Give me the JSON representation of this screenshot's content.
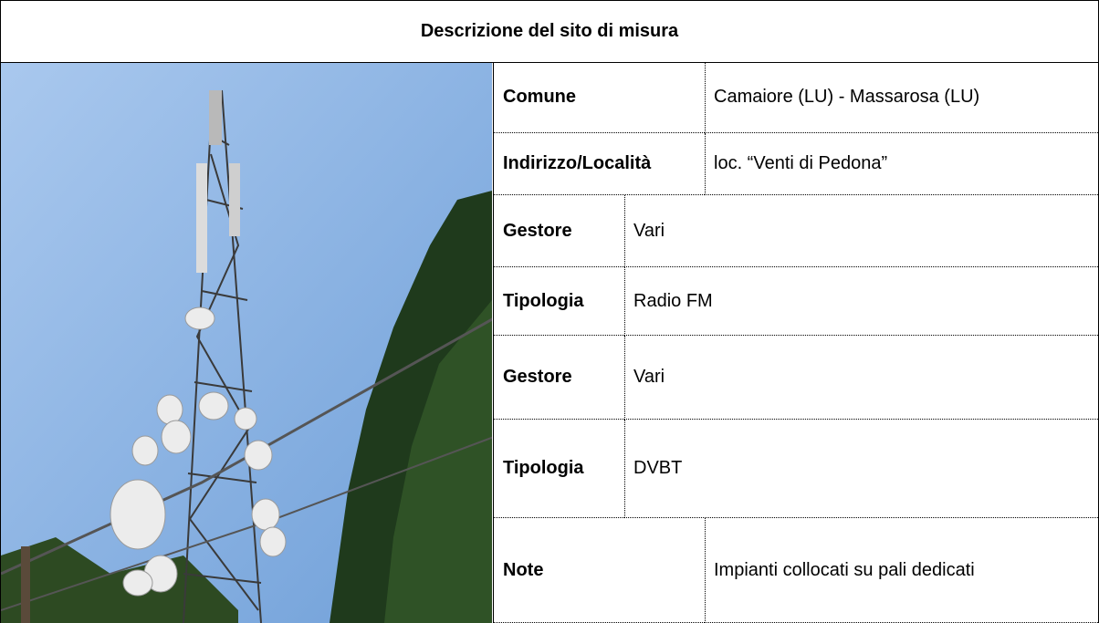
{
  "header": {
    "title": "Descrizione del sito di misura"
  },
  "rows": [
    {
      "label": "Comune",
      "value": "Camaiore (LU) - Massarosa (LU)"
    },
    {
      "label": "Indirizzo/Località",
      "value": "loc. “Venti di Pedona”"
    },
    {
      "label": "Gestore",
      "value": "Vari"
    },
    {
      "label": "Tipologia",
      "value": "Radio FM"
    },
    {
      "label": "Gestore",
      "value": "Vari"
    },
    {
      "label": "Tipologia",
      "value": "DVBT"
    },
    {
      "label": "Note",
      "value": "Impianti collocati su pali dedicati"
    }
  ]
}
